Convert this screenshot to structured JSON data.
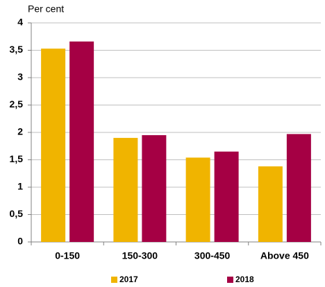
{
  "chart_data": {
    "type": "bar",
    "y_label": "Per cent",
    "categories": [
      "0-150",
      "150-300",
      "300-450",
      "Above 450"
    ],
    "series": [
      {
        "name": "2017",
        "color": "#f0b400",
        "values": [
          3.53,
          1.9,
          1.54,
          1.38
        ]
      },
      {
        "name": "2018",
        "color": "#a50044",
        "values": [
          3.66,
          1.95,
          1.65,
          1.97
        ]
      }
    ],
    "ylim": [
      0,
      4
    ],
    "yticks": [
      0,
      {
        "value": 0.5,
        "label": "0,5"
      },
      1,
      {
        "value": 1.5,
        "label": "1,5"
      },
      2,
      {
        "value": 2.5,
        "label": "2,5"
      },
      3,
      {
        "value": 3.5,
        "label": "3,5"
      },
      4
    ],
    "grid": true,
    "legend": "bottom"
  }
}
